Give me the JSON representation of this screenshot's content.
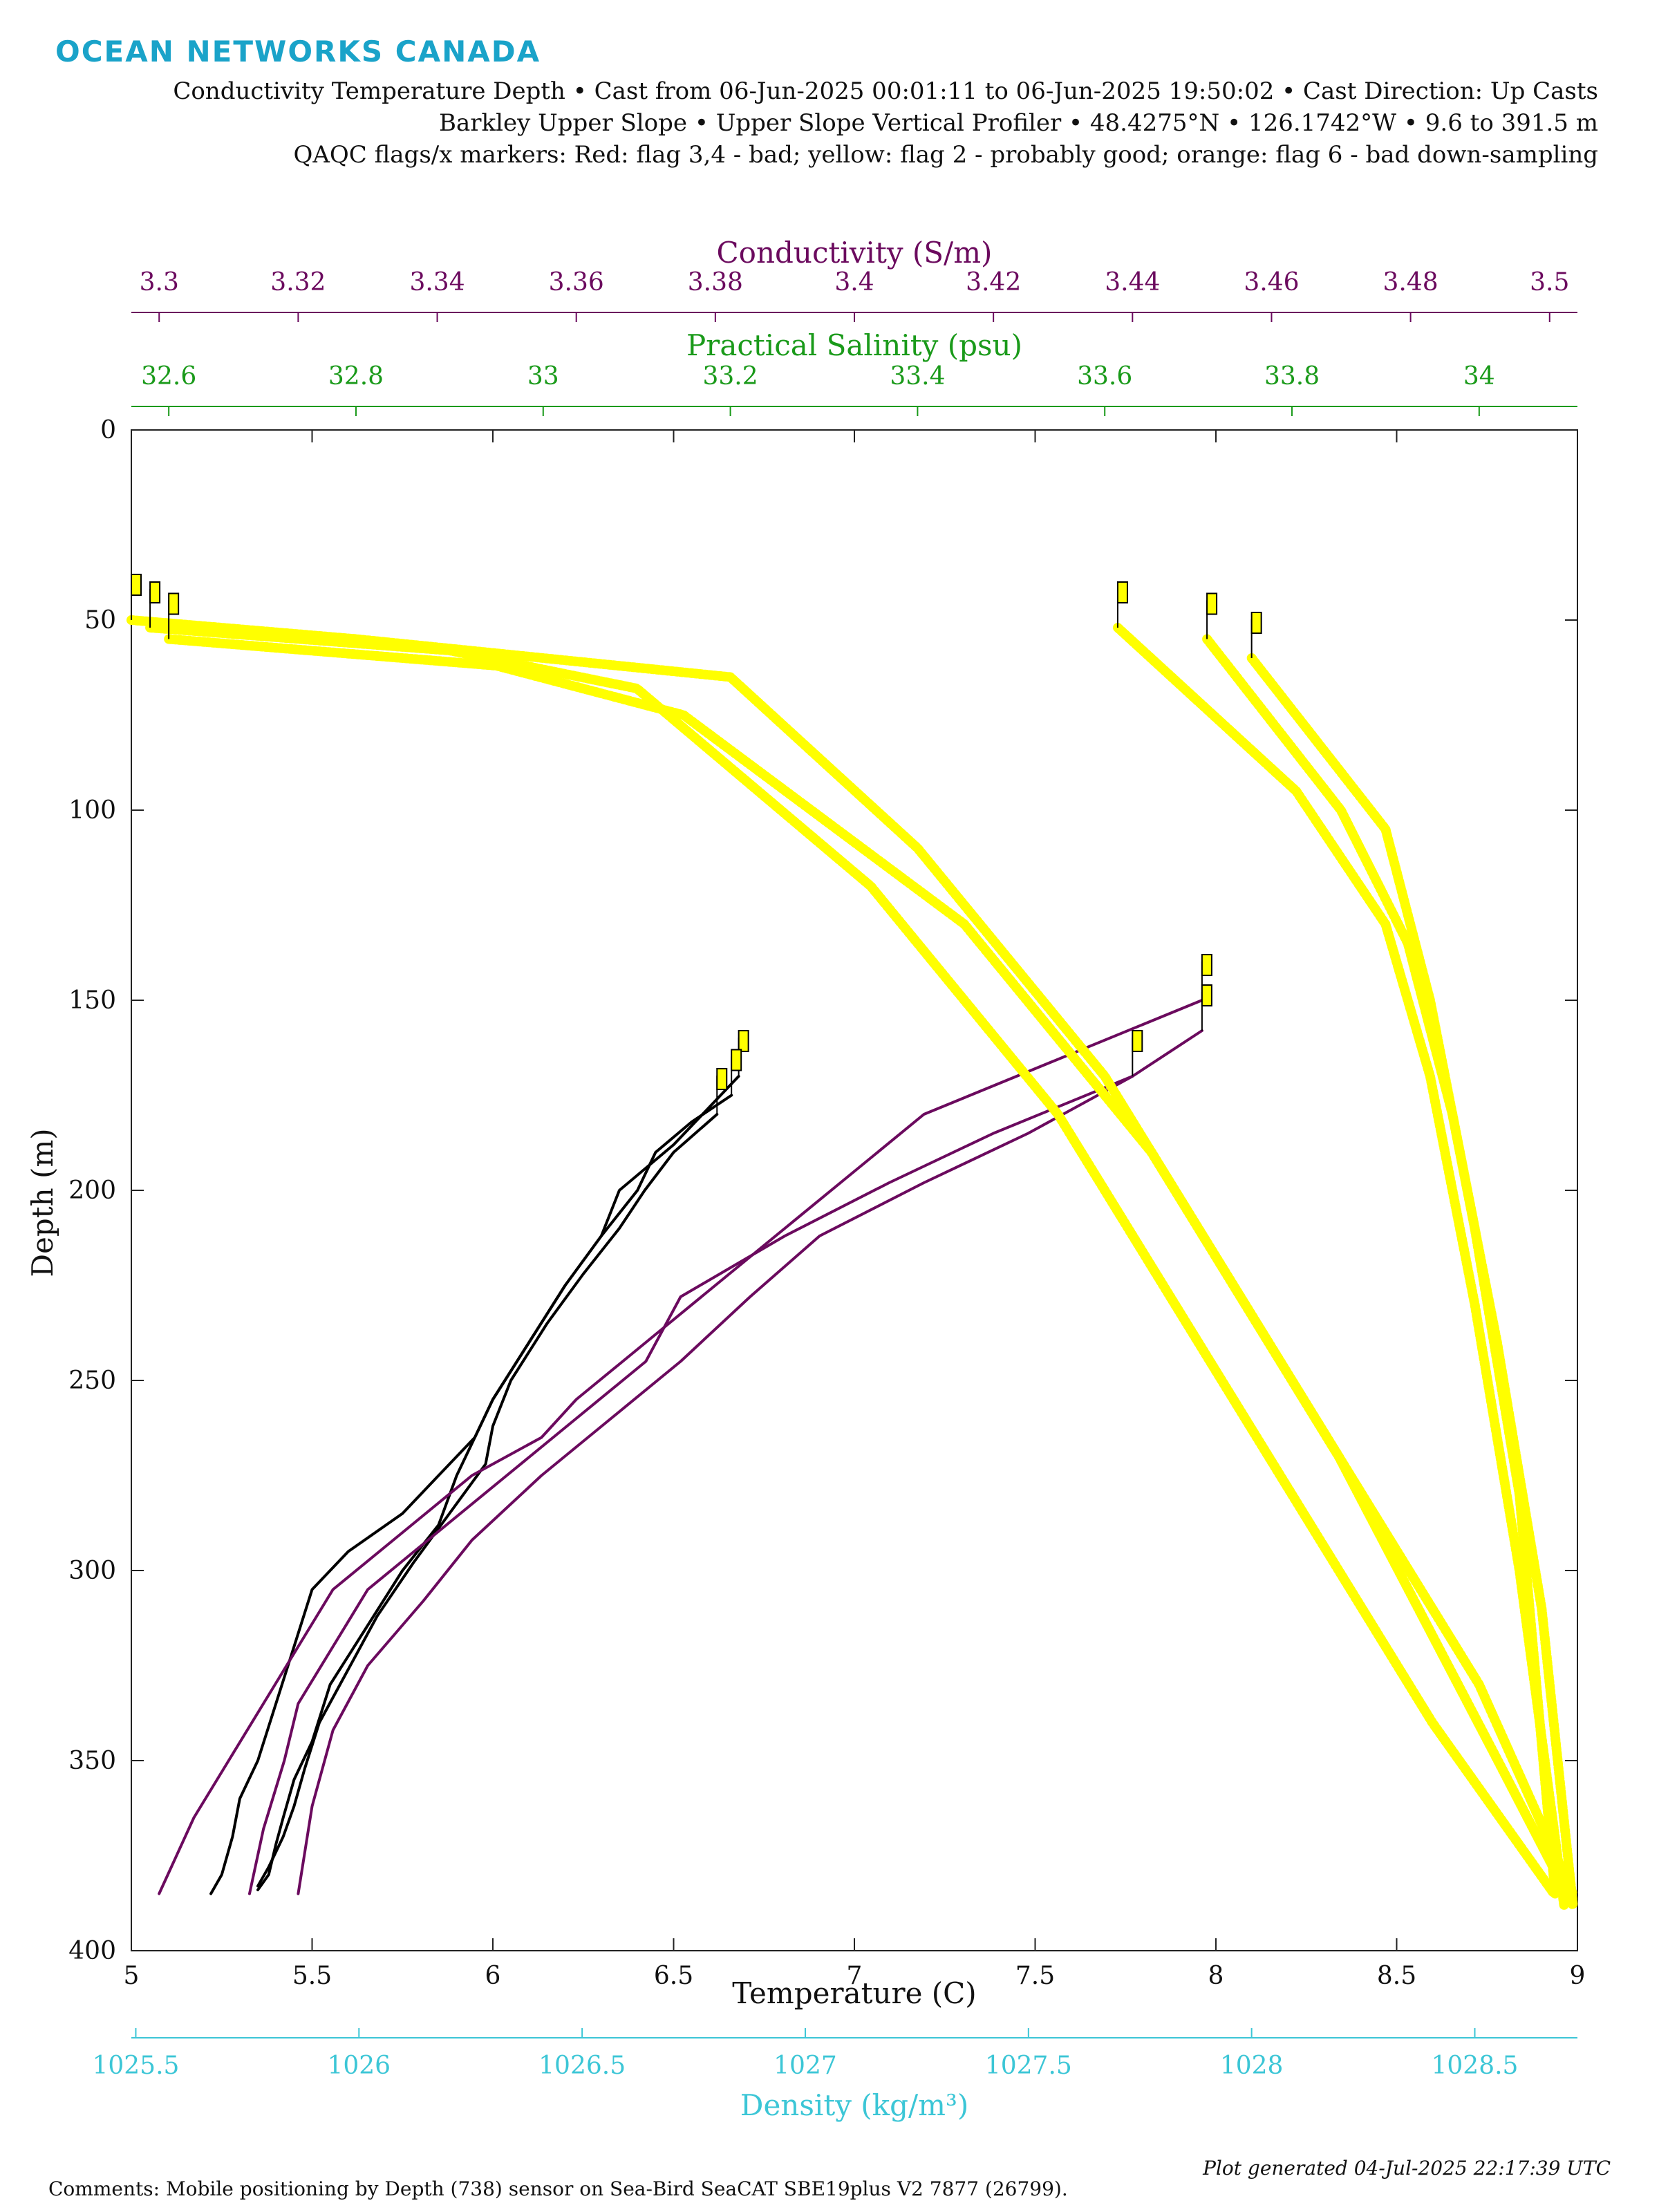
{
  "header": {
    "logo_text": "OCEAN NETWORKS CANADA",
    "line1": "Conductivity Temperature Depth • Cast from 06-Jun-2025 00:01:11 to 06-Jun-2025 19:50:02 • Cast Direction: Up Casts",
    "line2": "Barkley Upper Slope • Upper Slope Vertical Profiler • 48.4275°N • 126.1742°W • 9.6 to 391.5 m",
    "line3": "QAQC flags/x markers: Red: flag 3,4 - bad; yellow: flag 2 - probably good; orange: flag 6 - bad down-sampling"
  },
  "footer": {
    "comments": "Comments: Mobile positioning by Depth (738) sensor on Sea-Bird SeaCAT SBE19plus V2 7877 (26799).",
    "generated": "Plot generated 04-Jul-2025 22:17:39 UTC"
  },
  "colors": {
    "conductivity": "#6b0a5e",
    "salinity": "#1a9a1a",
    "temperature": "#000000",
    "density": "#3cc6d6",
    "flag_probably_good": "#ffff00"
  },
  "chart_data": {
    "type": "line",
    "ylabel": "Depth (m)",
    "y_ticks": [
      "0",
      "50",
      "100",
      "150",
      "200",
      "250",
      "300",
      "350",
      "400"
    ],
    "ylim": [
      0,
      400
    ],
    "y_reversed": true,
    "axes": {
      "temperature": {
        "label": "Temperature (C)",
        "lim": [
          5,
          9
        ],
        "ticks": [
          "5",
          "5.5",
          "6",
          "6.5",
          "7",
          "7.5",
          "8",
          "8.5",
          "9"
        ]
      },
      "conductivity": {
        "label": "Conductivity (S/m)",
        "lim": [
          3.296,
          3.504
        ],
        "ticks": [
          "3.3",
          "3.32",
          "3.34",
          "3.36",
          "3.38",
          "3.4",
          "3.42",
          "3.44",
          "3.46",
          "3.48",
          "3.5"
        ]
      },
      "salinity": {
        "label": "Practical Salinity (psu)",
        "lim": [
          32.56,
          34.105
        ],
        "ticks": [
          "32.6",
          "32.8",
          "33",
          "33.2",
          "33.4",
          "33.6",
          "33.8",
          "34"
        ]
      },
      "density": {
        "label": "Density (kg/m³)",
        "lim": [
          1025.49,
          1028.73
        ],
        "ticks": [
          "1025.5",
          "1026",
          "1026.5",
          "1027",
          "1027.5",
          "1028",
          "1028.5"
        ]
      }
    },
    "series": [
      {
        "variable": "temperature",
        "color": "#000000",
        "casts": [
          {
            "x": [
              6.68,
              6.6,
              6.5,
              6.35,
              6.3,
              6.2,
              6.1,
              6.0,
              5.95,
              5.85,
              5.75,
              5.6,
              5.5,
              5.45,
              5.4,
              5.35,
              5.3,
              5.28,
              5.25,
              5.22
            ],
            "y": [
              170,
              178,
              188,
              200,
              212,
              225,
              240,
              255,
              265,
              275,
              285,
              295,
              305,
              320,
              335,
              350,
              360,
              370,
              380,
              385
            ]
          },
          {
            "x": [
              6.66,
              6.55,
              6.45,
              6.4,
              6.3,
              6.2,
              6.1,
              6.0,
              5.95,
              5.9,
              5.85,
              5.75,
              5.65,
              5.55,
              5.5,
              5.45,
              5.42,
              5.4,
              5.38,
              5.35
            ],
            "y": [
              175,
              182,
              190,
              200,
              212,
              225,
              240,
              255,
              265,
              275,
              288,
              300,
              315,
              330,
              345,
              355,
              365,
              372,
              380,
              384
            ]
          },
          {
            "x": [
              6.62,
              6.5,
              6.42,
              6.35,
              6.25,
              6.15,
              6.05,
              6.0,
              5.98,
              5.88,
              5.78,
              5.68,
              5.6,
              5.52,
              5.48,
              5.45,
              5.42,
              5.38,
              5.35
            ],
            "y": [
              180,
              190,
              200,
              210,
              222,
              235,
              250,
              262,
              272,
              285,
              298,
              312,
              326,
              340,
              352,
              362,
              370,
              378,
              383
            ]
          }
        ]
      },
      {
        "variable": "conductivity",
        "color": "#6b0a5e",
        "casts": [
          {
            "x": [
              3.45,
              3.43,
              3.41,
              3.4,
              3.39,
              3.38,
              3.37,
              3.36,
              3.355,
              3.345,
              3.335,
              3.325,
              3.32,
              3.315,
              3.31,
              3.305,
              3.3
            ],
            "y": [
              150,
              165,
              180,
              195,
              210,
              225,
              240,
              255,
              265,
              275,
              290,
              305,
              320,
              335,
              350,
              365,
              385
            ]
          },
          {
            "x": [
              3.45,
              3.44,
              3.42,
              3.405,
              3.39,
              3.375,
              3.37,
              3.36,
              3.35,
              3.34,
              3.33,
              3.325,
              3.32,
              3.318,
              3.315,
              3.313
            ],
            "y": [
              158,
              170,
              185,
              198,
              212,
              228,
              245,
              260,
              275,
              290,
              305,
              320,
              335,
              350,
              368,
              385
            ]
          },
          {
            "x": [
              3.44,
              3.425,
              3.41,
              3.395,
              3.385,
              3.375,
              3.365,
              3.355,
              3.345,
              3.338,
              3.33,
              3.325,
              3.322,
              3.32
            ],
            "y": [
              170,
              185,
              198,
              212,
              228,
              245,
              260,
              275,
              292,
              308,
              325,
              342,
              362,
              385
            ]
          }
        ]
      },
      {
        "variable": "salinity",
        "color": "#ffff00",
        "flag": "probably good",
        "casts": [
          {
            "x": [
              32.56,
              32.8,
              33.2,
              33.4,
              33.6,
              33.8,
              34.0,
              34.1
            ],
            "y": [
              50,
              55,
              65,
              110,
              170,
              250,
              330,
              385
            ]
          },
          {
            "x": [
              32.58,
              32.9,
              33.1,
              33.35,
              33.55,
              33.75,
              33.95,
              34.08
            ],
            "y": [
              52,
              58,
              68,
              120,
              180,
              260,
              340,
              385
            ]
          },
          {
            "x": [
              32.6,
              32.95,
              33.15,
              33.45,
              33.65,
              33.85,
              34.02,
              34.1
            ],
            "y": [
              55,
              62,
              75,
              130,
              190,
              270,
              350,
              388
            ]
          }
        ]
      },
      {
        "variable": "density",
        "color": "#ffff00",
        "flag": "probably good",
        "casts": [
          {
            "x": [
              1027.7,
              1028.1,
              1028.3,
              1028.4,
              1028.5,
              1028.6,
              1028.7
            ],
            "y": [
              52,
              95,
              130,
              170,
              230,
              300,
              388
            ]
          },
          {
            "x": [
              1027.9,
              1028.2,
              1028.35,
              1028.45,
              1028.55,
              1028.65,
              1028.72
            ],
            "y": [
              55,
              100,
              135,
              180,
              240,
              310,
              388
            ]
          },
          {
            "x": [
              1028.0,
              1028.3,
              1028.4,
              1028.5,
              1028.6,
              1028.68
            ],
            "y": [
              60,
              105,
              150,
              210,
              280,
              385
            ]
          }
        ]
      }
    ]
  }
}
